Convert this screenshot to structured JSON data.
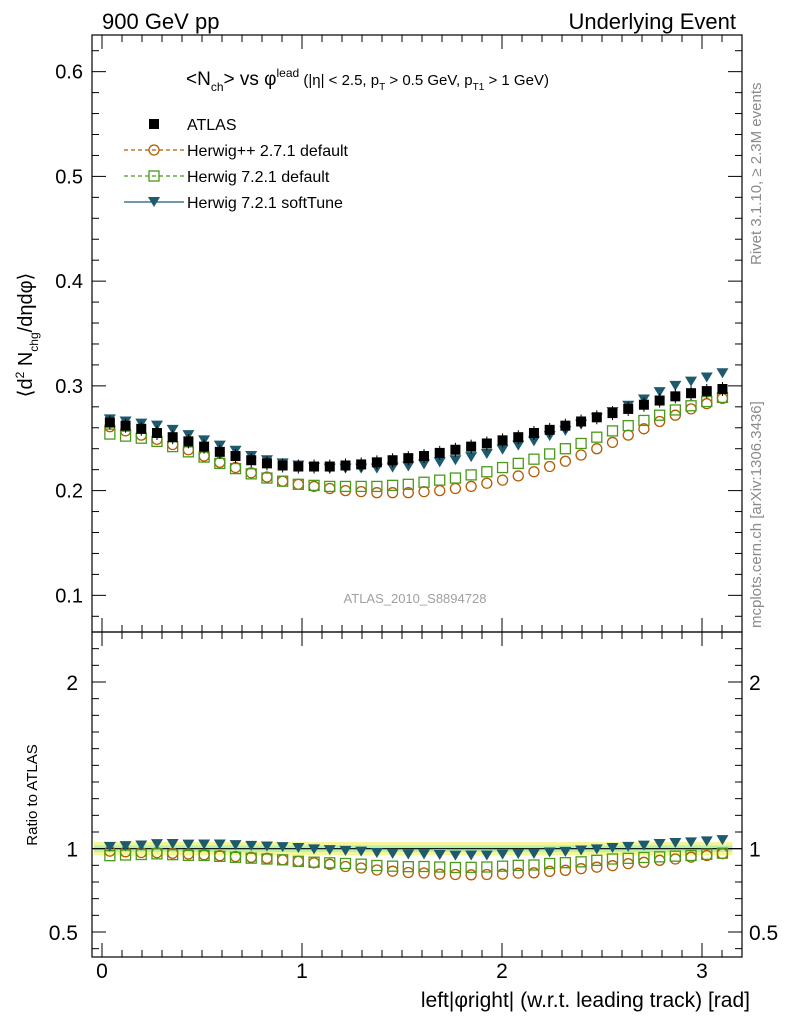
{
  "header": {
    "left": "900 GeV pp",
    "right": "Underlying Event"
  },
  "side": {
    "rivet": "Rivet 3.1.10, ≥ 2.3M events",
    "mcplots": "mcplots.cern.ch [arXiv:1306.3436]"
  },
  "chart_data": [
    {
      "type": "scatter",
      "title": "<N_ch> vs φ^lead (|η| < 2.5, p_T > 0.5 GeV, p_T1 > 1 GeV)",
      "analysis_label": "ATLAS_2010_S8894728",
      "ylabel": "⟨d² N_chg/dηdφ⟩",
      "xlim": [
        -0.05,
        3.2
      ],
      "ylim": [
        0.065,
        0.635
      ],
      "yticks": [
        0.1,
        0.2,
        0.3,
        0.4,
        0.5,
        0.6
      ],
      "legend_placement": "top-left",
      "x": [
        0.0393,
        0.1178,
        0.1963,
        0.2749,
        0.3534,
        0.432,
        0.5105,
        0.589,
        0.6676,
        0.7461,
        0.8247,
        0.9032,
        0.9817,
        1.0603,
        1.1388,
        1.2174,
        1.2959,
        1.3744,
        1.453,
        1.5315,
        1.6101,
        1.6886,
        1.7671,
        1.8457,
        1.9242,
        2.0028,
        2.0813,
        2.1598,
        2.2384,
        2.3169,
        2.3955,
        2.474,
        2.5525,
        2.6311,
        2.7096,
        2.7882,
        2.8667,
        2.9452,
        3.0238,
        3.1023
      ],
      "series": [
        {
          "name": "ATLAS",
          "color": "#000000",
          "marker": "filled-square",
          "values": [
            0.265,
            0.262,
            0.259,
            0.255,
            0.251,
            0.247,
            0.242,
            0.237,
            0.233,
            0.229,
            0.226,
            0.224,
            0.223,
            0.223,
            0.223,
            0.224,
            0.225,
            0.227,
            0.229,
            0.231,
            0.233,
            0.236,
            0.239,
            0.242,
            0.245,
            0.248,
            0.251,
            0.255,
            0.258,
            0.262,
            0.266,
            0.27,
            0.274,
            0.278,
            0.282,
            0.286,
            0.29,
            0.293,
            0.295,
            0.297
          ]
        },
        {
          "name": "Herwig++ 2.7.1 default",
          "color": "#b35c00",
          "marker": "open-circle",
          "values": [
            0.261,
            0.257,
            0.253,
            0.249,
            0.244,
            0.239,
            0.233,
            0.227,
            0.222,
            0.217,
            0.213,
            0.209,
            0.206,
            0.204,
            0.202,
            0.2,
            0.199,
            0.198,
            0.198,
            0.198,
            0.199,
            0.2,
            0.202,
            0.204,
            0.207,
            0.21,
            0.214,
            0.218,
            0.223,
            0.228,
            0.234,
            0.24,
            0.246,
            0.253,
            0.259,
            0.266,
            0.272,
            0.278,
            0.283,
            0.288
          ]
        },
        {
          "name": "Herwig 7.2.1 default",
          "color": "#4a9a1a",
          "marker": "open-square",
          "values": [
            0.254,
            0.252,
            0.25,
            0.247,
            0.242,
            0.237,
            0.232,
            0.226,
            0.221,
            0.216,
            0.212,
            0.209,
            0.206,
            0.205,
            0.204,
            0.204,
            0.204,
            0.204,
            0.205,
            0.206,
            0.208,
            0.21,
            0.212,
            0.215,
            0.218,
            0.222,
            0.226,
            0.23,
            0.235,
            0.24,
            0.245,
            0.251,
            0.257,
            0.262,
            0.267,
            0.272,
            0.277,
            0.281,
            0.285,
            0.289
          ]
        },
        {
          "name": "Herwig 7.2.1 softTune",
          "color": "#1e5a6e",
          "marker": "filled-triangle-down",
          "values": [
            0.268,
            0.266,
            0.264,
            0.262,
            0.258,
            0.253,
            0.248,
            0.243,
            0.238,
            0.233,
            0.229,
            0.226,
            0.224,
            0.222,
            0.221,
            0.221,
            0.221,
            0.221,
            0.222,
            0.223,
            0.225,
            0.227,
            0.229,
            0.232,
            0.235,
            0.239,
            0.243,
            0.247,
            0.252,
            0.257,
            0.263,
            0.269,
            0.275,
            0.281,
            0.287,
            0.294,
            0.3,
            0.304,
            0.308,
            0.312
          ]
        }
      ]
    },
    {
      "type": "scatter",
      "ylabel": "Ratio to ATLAS",
      "xlabel": "left|φright| (w.r.t. leading track) [rad]",
      "xlim": [
        -0.05,
        3.2
      ],
      "ylim": [
        0.35,
        2.3
      ],
      "yticks": [
        0.5,
        1,
        2
      ],
      "xticks": [
        0,
        1,
        2,
        3
      ],
      "reference_band": {
        "lower": 0.96,
        "upper": 1.04,
        "inner_lower": 0.98,
        "inner_upper": 1.02
      },
      "series": [
        {
          "name": "Herwig++ 2.7.1 default",
          "color": "#b35c00",
          "marker": "open-circle",
          "values": [
            0.985,
            0.981,
            0.977,
            0.976,
            0.972,
            0.968,
            0.963,
            0.958,
            0.953,
            0.948,
            0.942,
            0.933,
            0.924,
            0.915,
            0.906,
            0.893,
            0.884,
            0.872,
            0.865,
            0.857,
            0.854,
            0.847,
            0.845,
            0.843,
            0.845,
            0.847,
            0.853,
            0.855,
            0.864,
            0.87,
            0.88,
            0.889,
            0.898,
            0.91,
            0.918,
            0.93,
            0.938,
            0.949,
            0.959,
            0.97
          ]
        },
        {
          "name": "Herwig 7.2.1 default",
          "color": "#4a9a1a",
          "marker": "open-square",
          "values": [
            0.958,
            0.962,
            0.965,
            0.969,
            0.964,
            0.96,
            0.959,
            0.954,
            0.948,
            0.943,
            0.938,
            0.933,
            0.924,
            0.919,
            0.915,
            0.911,
            0.907,
            0.899,
            0.895,
            0.892,
            0.893,
            0.89,
            0.887,
            0.888,
            0.89,
            0.895,
            0.9,
            0.902,
            0.911,
            0.916,
            0.921,
            0.93,
            0.938,
            0.942,
            0.947,
            0.951,
            0.955,
            0.959,
            0.966,
            0.973
          ]
        },
        {
          "name": "Herwig 7.2.1 softTune",
          "color": "#1e5a6e",
          "marker": "filled-triangle-down",
          "values": [
            1.011,
            1.015,
            1.019,
            1.027,
            1.028,
            1.024,
            1.025,
            1.025,
            1.021,
            1.017,
            1.013,
            1.009,
            1.004,
            0.996,
            0.991,
            0.987,
            0.982,
            0.974,
            0.969,
            0.965,
            0.966,
            0.962,
            0.958,
            0.959,
            0.959,
            0.964,
            0.968,
            0.969,
            0.977,
            0.981,
            0.989,
            0.996,
            1.004,
            1.011,
            1.018,
            1.028,
            1.034,
            1.038,
            1.044,
            1.051
          ]
        }
      ]
    }
  ]
}
